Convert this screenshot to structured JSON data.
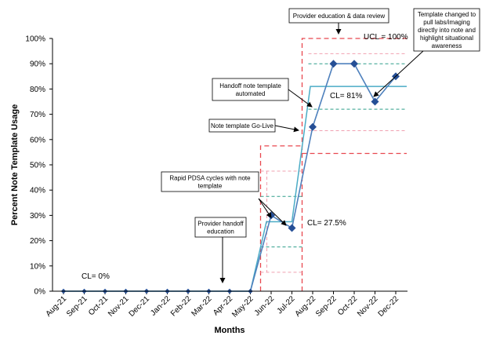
{
  "chart_data": {
    "type": "line",
    "categories": [
      "Aug-21",
      "Sep-21",
      "Oct-21",
      "Nov-21",
      "Dec-21",
      "Jan-22",
      "Feb-22",
      "Mar-22",
      "Apr-22",
      "May-22",
      "Jun-22",
      "Jul-22",
      "Aug-22",
      "Sep-22",
      "Oct-22",
      "Nov-22",
      "Dec-22"
    ],
    "series": [
      {
        "values": [
          0,
          0,
          0,
          0,
          0,
          0,
          0,
          0,
          0,
          0,
          30,
          25,
          65,
          90,
          90,
          75,
          85
        ],
        "color": "#4f81bd",
        "marker": "diamond",
        "marker_color": "#254f96"
      }
    ],
    "xlabel": "Months",
    "ylabel": "Percent Note Template Usage",
    "ylim": [
      0,
      100
    ],
    "yticks": [
      0,
      10,
      20,
      30,
      40,
      50,
      60,
      70,
      80,
      90,
      100
    ],
    "ytick_labels": [
      "0%",
      "10%",
      "20%",
      "30%",
      "40%",
      "50%",
      "60%",
      "70%",
      "80%",
      "90%",
      "100%"
    ],
    "grid": false,
    "phases": [
      {
        "start": "Aug-21",
        "end": "May-22",
        "cl": 0,
        "label": "CL= 0%"
      },
      {
        "start": "May-22",
        "end": "Jul-22",
        "cl": 27.5,
        "ucl": 57.5,
        "label": "CL= 27.5%"
      },
      {
        "start": "Aug-22",
        "end": "Dec-22",
        "cl": 81,
        "ucl": 100,
        "lcl": 54.5,
        "label": "CL= 81%",
        "ucl_label": "UCL = 100%"
      }
    ],
    "colors": {
      "line": "#4f81bd",
      "cl": "#4bacc6",
      "ucl": "#e8474f",
      "sigma2": "#2e9e8a",
      "sigma1": "#f0a0b0",
      "arrow": "#000000"
    },
    "annotations": [
      {
        "text": "Provider handoff education",
        "lines": [
          "Provider handoff",
          "education"
        ],
        "target": "Apr-22"
      },
      {
        "text": "Rapid PDSA cycles with note template",
        "lines": [
          "Rapid PDSA cycles with note",
          "template"
        ],
        "target": "Jun-22"
      },
      {
        "text": "Note template Go-Live",
        "lines": [
          "Note template Go-Live"
        ],
        "target": "Aug-22"
      },
      {
        "text": "Handoff note template automated",
        "lines": [
          "Handoff note template",
          "automated"
        ],
        "target": "Aug-22"
      },
      {
        "text": "Provider education & data review",
        "lines": [
          "Provider education & data review"
        ],
        "target": "Sep-22"
      },
      {
        "text": "Template changed to pull labs/imaging directly into note and highlight situational awareness",
        "lines": [
          "Template changed to",
          "pull labs/imaging",
          "directly into note and",
          "highlight situational",
          "awareness"
        ],
        "target": "Nov-22"
      }
    ]
  }
}
